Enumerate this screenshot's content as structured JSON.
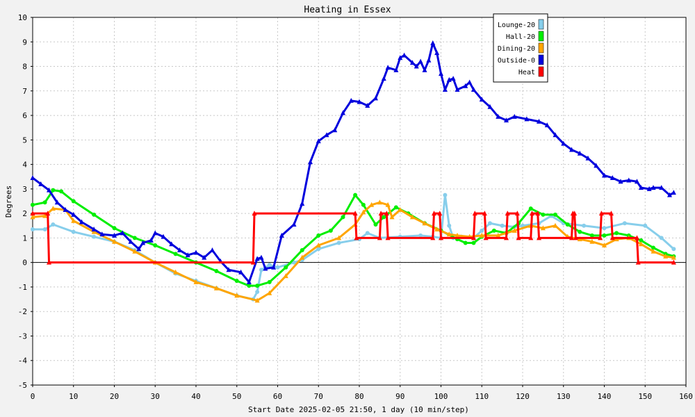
{
  "chart_data": {
    "type": "line",
    "title": "Heating in Essex",
    "xlabel": "Start Date 2025-02-05 21:50, 1 day (10 min/step)",
    "ylabel": "Degrees",
    "xlim": [
      0,
      160
    ],
    "ylim": [
      -5,
      10
    ],
    "x_ticks": [
      "0",
      "10",
      "20",
      "30",
      "40",
      "50",
      "60",
      "70",
      "80",
      "90",
      "100",
      "110",
      "120",
      "130",
      "140",
      "150",
      "160"
    ],
    "y_ticks": [
      "-5",
      "-4",
      "-3",
      "-2",
      "-1",
      "0",
      "1",
      "2",
      "3",
      "4",
      "5",
      "6",
      "7",
      "8",
      "9",
      "10"
    ],
    "grid": true,
    "legend_position": "top-right",
    "series": [
      {
        "name": "Lounge-20",
        "color": "#87ceeb",
        "marker": "circle",
        "points": [
          [
            0,
            1.35
          ],
          [
            3,
            1.35
          ],
          [
            5,
            1.55
          ],
          [
            10,
            1.25
          ],
          [
            15,
            1.05
          ],
          [
            20,
            0.85
          ],
          [
            25,
            0.5
          ],
          [
            30,
            0.0
          ],
          [
            35,
            -0.45
          ],
          [
            40,
            -0.75
          ],
          [
            45,
            -1.05
          ],
          [
            50,
            -1.35
          ],
          [
            54,
            -1.5
          ],
          [
            55,
            -1.2
          ],
          [
            56,
            -0.3
          ],
          [
            58,
            -0.1
          ],
          [
            60,
            -0.2
          ],
          [
            64,
            0.0
          ],
          [
            66,
            0.1
          ],
          [
            70,
            0.55
          ],
          [
            75,
            0.8
          ],
          [
            80,
            0.95
          ],
          [
            82,
            1.2
          ],
          [
            85,
            1.0
          ],
          [
            90,
            1.05
          ],
          [
            95,
            1.1
          ],
          [
            98,
            1.05
          ],
          [
            100,
            1.0
          ],
          [
            101,
            2.75
          ],
          [
            102,
            1.5
          ],
          [
            103,
            1.0
          ],
          [
            105,
            1.05
          ],
          [
            108,
            1.0
          ],
          [
            110,
            1.3
          ],
          [
            112,
            1.6
          ],
          [
            115,
            1.5
          ],
          [
            118,
            1.45
          ],
          [
            120,
            1.5
          ],
          [
            124,
            1.6
          ],
          [
            127,
            1.9
          ],
          [
            130,
            1.6
          ],
          [
            135,
            1.5
          ],
          [
            140,
            1.4
          ],
          [
            145,
            1.6
          ],
          [
            150,
            1.5
          ],
          [
            154,
            1.0
          ],
          [
            157,
            0.55
          ]
        ]
      },
      {
        "name": "Hall-20",
        "color": "#00ee00",
        "marker": "circle",
        "points": [
          [
            0,
            2.35
          ],
          [
            3,
            2.45
          ],
          [
            5,
            2.95
          ],
          [
            7,
            2.9
          ],
          [
            10,
            2.5
          ],
          [
            15,
            1.95
          ],
          [
            20,
            1.4
          ],
          [
            25,
            1.0
          ],
          [
            30,
            0.7
          ],
          [
            35,
            0.35
          ],
          [
            40,
            0.0
          ],
          [
            45,
            -0.35
          ],
          [
            50,
            -0.75
          ],
          [
            53,
            -0.95
          ],
          [
            55,
            -0.95
          ],
          [
            58,
            -0.8
          ],
          [
            62,
            -0.2
          ],
          [
            66,
            0.5
          ],
          [
            70,
            1.1
          ],
          [
            73,
            1.3
          ],
          [
            76,
            1.85
          ],
          [
            79,
            2.75
          ],
          [
            81,
            2.35
          ],
          [
            84,
            1.55
          ],
          [
            86,
            1.85
          ],
          [
            89,
            2.25
          ],
          [
            92,
            2.0
          ],
          [
            96,
            1.6
          ],
          [
            100,
            1.3
          ],
          [
            104,
            0.95
          ],
          [
            106,
            0.8
          ],
          [
            108,
            0.8
          ],
          [
            110,
            1.05
          ],
          [
            113,
            1.3
          ],
          [
            116,
            1.2
          ],
          [
            119,
            1.6
          ],
          [
            122,
            2.2
          ],
          [
            125,
            1.95
          ],
          [
            128,
            1.95
          ],
          [
            131,
            1.55
          ],
          [
            134,
            1.25
          ],
          [
            137,
            1.1
          ],
          [
            140,
            1.1
          ],
          [
            143,
            1.2
          ],
          [
            146,
            1.1
          ],
          [
            149,
            0.9
          ],
          [
            152,
            0.6
          ],
          [
            155,
            0.35
          ],
          [
            157,
            0.25
          ]
        ]
      },
      {
        "name": "Dining-20",
        "color": "#ffa500",
        "marker": "triangle",
        "points": [
          [
            0,
            1.85
          ],
          [
            3,
            1.9
          ],
          [
            5,
            2.2
          ],
          [
            8,
            2.15
          ],
          [
            10,
            1.7
          ],
          [
            15,
            1.25
          ],
          [
            20,
            0.85
          ],
          [
            25,
            0.45
          ],
          [
            30,
            0.0
          ],
          [
            35,
            -0.4
          ],
          [
            40,
            -0.8
          ],
          [
            45,
            -1.05
          ],
          [
            50,
            -1.35
          ],
          [
            55,
            -1.55
          ],
          [
            58,
            -1.25
          ],
          [
            62,
            -0.55
          ],
          [
            66,
            0.2
          ],
          [
            70,
            0.7
          ],
          [
            75,
            1.0
          ],
          [
            79,
            1.55
          ],
          [
            81,
            2.05
          ],
          [
            83,
            2.35
          ],
          [
            85,
            2.45
          ],
          [
            87,
            2.35
          ],
          [
            88,
            1.85
          ],
          [
            90,
            2.15
          ],
          [
            93,
            1.85
          ],
          [
            96,
            1.6
          ],
          [
            99,
            1.35
          ],
          [
            102,
            1.15
          ],
          [
            104,
            1.1
          ],
          [
            107,
            1.05
          ],
          [
            110,
            1.1
          ],
          [
            114,
            1.1
          ],
          [
            118,
            1.3
          ],
          [
            122,
            1.5
          ],
          [
            125,
            1.4
          ],
          [
            128,
            1.5
          ],
          [
            131,
            1.05
          ],
          [
            134,
            0.95
          ],
          [
            137,
            0.85
          ],
          [
            140,
            0.7
          ],
          [
            143,
            0.95
          ],
          [
            146,
            1.0
          ],
          [
            149,
            0.75
          ],
          [
            152,
            0.45
          ],
          [
            155,
            0.25
          ],
          [
            157,
            0.2
          ]
        ]
      },
      {
        "name": "Outside-0",
        "color": "#0000dd",
        "marker": "triangle",
        "points": [
          [
            0,
            3.45
          ],
          [
            2,
            3.2
          ],
          [
            4,
            2.95
          ],
          [
            6,
            2.45
          ],
          [
            8,
            2.15
          ],
          [
            10,
            1.95
          ],
          [
            12,
            1.65
          ],
          [
            15,
            1.35
          ],
          [
            17,
            1.15
          ],
          [
            20,
            1.1
          ],
          [
            22,
            1.2
          ],
          [
            24,
            0.85
          ],
          [
            26,
            0.55
          ],
          [
            27,
            0.8
          ],
          [
            29,
            0.9
          ],
          [
            30,
            1.2
          ],
          [
            32,
            1.05
          ],
          [
            34,
            0.75
          ],
          [
            36,
            0.5
          ],
          [
            38,
            0.3
          ],
          [
            40,
            0.4
          ],
          [
            42,
            0.2
          ],
          [
            44,
            0.5
          ],
          [
            46,
            0.05
          ],
          [
            48,
            -0.3
          ],
          [
            51,
            -0.4
          ],
          [
            53,
            -0.8
          ],
          [
            55,
            0.15
          ],
          [
            56,
            0.2
          ],
          [
            57,
            -0.25
          ],
          [
            59,
            -0.2
          ],
          [
            61,
            1.1
          ],
          [
            64,
            1.55
          ],
          [
            66,
            2.4
          ],
          [
            68,
            4.1
          ],
          [
            70,
            4.95
          ],
          [
            72,
            5.2
          ],
          [
            74,
            5.4
          ],
          [
            76,
            6.1
          ],
          [
            78,
            6.6
          ],
          [
            80,
            6.55
          ],
          [
            82,
            6.4
          ],
          [
            84,
            6.7
          ],
          [
            86,
            7.5
          ],
          [
            87,
            7.95
          ],
          [
            89,
            7.85
          ],
          [
            90,
            8.35
          ],
          [
            91,
            8.45
          ],
          [
            93,
            8.15
          ],
          [
            94,
            8.0
          ],
          [
            95,
            8.2
          ],
          [
            96,
            7.85
          ],
          [
            97,
            8.25
          ],
          [
            98,
            8.95
          ],
          [
            99,
            8.55
          ],
          [
            100,
            7.7
          ],
          [
            101,
            7.05
          ],
          [
            102,
            7.45
          ],
          [
            103,
            7.5
          ],
          [
            104,
            7.05
          ],
          [
            106,
            7.2
          ],
          [
            107,
            7.35
          ],
          [
            108,
            7.05
          ],
          [
            110,
            6.65
          ],
          [
            112,
            6.35
          ],
          [
            114,
            5.95
          ],
          [
            116,
            5.8
          ],
          [
            118,
            5.95
          ],
          [
            121,
            5.85
          ],
          [
            124,
            5.75
          ],
          [
            126,
            5.6
          ],
          [
            128,
            5.2
          ],
          [
            130,
            4.85
          ],
          [
            132,
            4.6
          ],
          [
            134,
            4.45
          ],
          [
            136,
            4.25
          ],
          [
            138,
            3.95
          ],
          [
            140,
            3.55
          ],
          [
            142,
            3.45
          ],
          [
            144,
            3.3
          ],
          [
            146,
            3.35
          ],
          [
            148,
            3.3
          ],
          [
            149,
            3.05
          ],
          [
            151,
            3.0
          ],
          [
            152,
            3.05
          ],
          [
            154,
            3.05
          ],
          [
            156,
            2.75
          ],
          [
            157,
            2.85
          ]
        ]
      },
      {
        "name": "Heat",
        "color": "#ff0000",
        "marker": "triangle",
        "points": [
          [
            0,
            2
          ],
          [
            3.7,
            2
          ],
          [
            4,
            0
          ],
          [
            54,
            0
          ],
          [
            54.3,
            2
          ],
          [
            79,
            2
          ],
          [
            79.3,
            1
          ],
          [
            85,
            1
          ],
          [
            85.3,
            2
          ],
          [
            86.7,
            2
          ],
          [
            87,
            1
          ],
          [
            98,
            1
          ],
          [
            98.3,
            2
          ],
          [
            99.7,
            2
          ],
          [
            100,
            1
          ],
          [
            108,
            1
          ],
          [
            108.3,
            2
          ],
          [
            110.7,
            2
          ],
          [
            111,
            1
          ],
          [
            116,
            1
          ],
          [
            116.3,
            2
          ],
          [
            118.7,
            2
          ],
          [
            119,
            1
          ],
          [
            122,
            1
          ],
          [
            122.3,
            2
          ],
          [
            123.7,
            2
          ],
          [
            124,
            1
          ],
          [
            132,
            1
          ],
          [
            132.3,
            2
          ],
          [
            132.7,
            2
          ],
          [
            133,
            1
          ],
          [
            139,
            1
          ],
          [
            139.3,
            2
          ],
          [
            141.7,
            2
          ],
          [
            142,
            1
          ],
          [
            148,
            1
          ],
          [
            148.3,
            0
          ],
          [
            157,
            0
          ]
        ]
      }
    ]
  }
}
